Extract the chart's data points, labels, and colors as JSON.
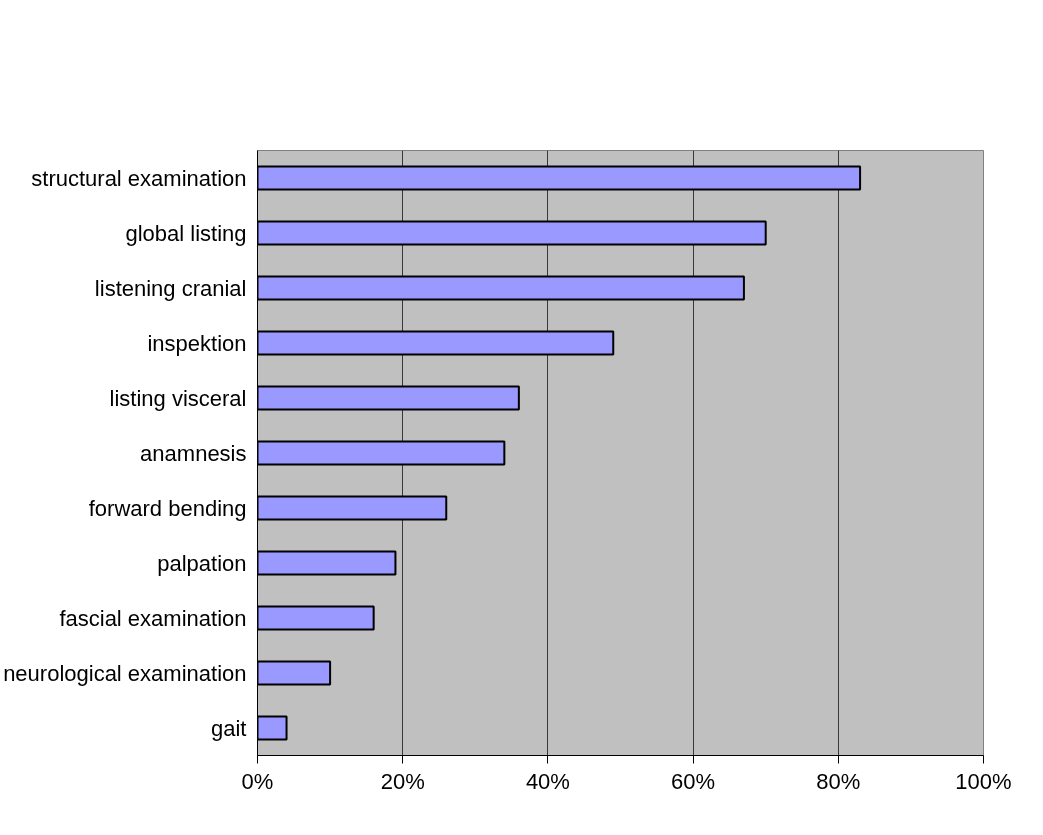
{
  "chart_data": {
    "type": "bar",
    "orientation": "horizontal",
    "categories": [
      "structural examination",
      "global listing",
      "listening cranial",
      "inspektion",
      "listing visceral",
      "anamnesis",
      "forward bending",
      "palpation",
      "fascial examination",
      "neurological examination",
      "gait"
    ],
    "values": [
      83,
      70,
      67,
      49,
      36,
      34,
      26,
      19,
      16,
      10,
      4
    ],
    "color": "#9999ff",
    "xlim": [
      0,
      100
    ],
    "xticks": [
      {
        "value": 0,
        "label": "0%"
      },
      {
        "value": 20,
        "label": "20%"
      },
      {
        "value": 40,
        "label": "40%"
      },
      {
        "value": 60,
        "label": "60%"
      },
      {
        "value": 80,
        "label": "80%"
      },
      {
        "value": 100,
        "label": "100%"
      }
    ],
    "grid": "x"
  }
}
